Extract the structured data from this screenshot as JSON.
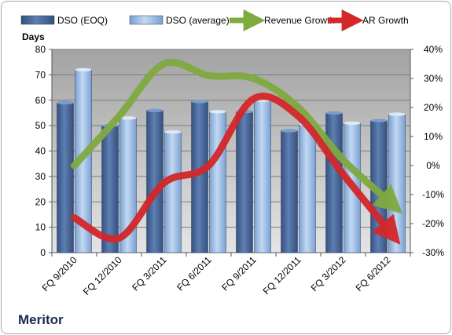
{
  "company": "Meritor",
  "chart_data": {
    "type": "bar",
    "categories": [
      "FQ 9/2010",
      "FQ 12/2010",
      "FQ 3/2011",
      "FQ 6/2011",
      "FQ 9/2011",
      "FQ 12/2011",
      "FQ 3/2012",
      "FQ 6/2012"
    ],
    "ylabel": "Days",
    "ylim": [
      0,
      80
    ],
    "yticks": [
      0,
      10,
      20,
      30,
      40,
      50,
      60,
      70,
      80
    ],
    "y2lim": [
      -0.3,
      0.4
    ],
    "y2ticks": [
      "-30%",
      "-20%",
      "-10%",
      "0%",
      "10%",
      "20%",
      "30%",
      "40%"
    ],
    "y2tick_values": [
      -0.3,
      -0.2,
      -0.1,
      0,
      0.1,
      0.2,
      0.3,
      0.4
    ],
    "grid": true,
    "legend_position": "top",
    "series": [
      {
        "name": "DSO (EOQ)",
        "kind": "bar",
        "axis": "left",
        "color": "#4a6a9a",
        "values": [
          59,
          50,
          56,
          59.5,
          55.5,
          48,
          55,
          52
        ]
      },
      {
        "name": "DSO (average)",
        "kind": "bar",
        "axis": "left",
        "color": "#a9c4e6",
        "values": [
          72,
          53,
          47.5,
          55.5,
          60,
          50.5,
          51,
          54.5
        ]
      },
      {
        "name": "Revenue Growth",
        "kind": "arrow-line",
        "axis": "right",
        "color": "#7faa3f",
        "values": [
          0.0,
          0.17,
          0.35,
          0.31,
          0.3,
          0.2,
          0.02,
          -0.12
        ]
      },
      {
        "name": "AR Growth",
        "kind": "arrow-line",
        "axis": "right",
        "color": "#d3272a",
        "values": [
          -0.18,
          -0.25,
          -0.06,
          0.0,
          0.23,
          0.17,
          -0.03,
          -0.22
        ]
      }
    ]
  }
}
